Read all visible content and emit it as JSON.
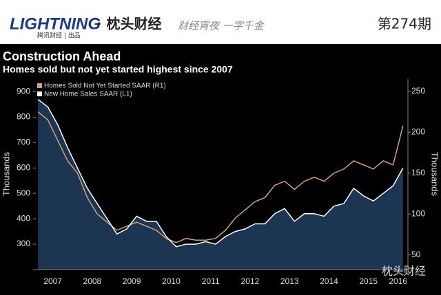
{
  "header": {
    "logo": "LIGHTNING",
    "brand": "· 枕头财经",
    "slogan": "财经宵夜 一字千金",
    "issue": "第274期",
    "producer": "腾讯财经 | 出品"
  },
  "watermark": "枕头财经",
  "chart_data": {
    "type": "line",
    "title": "Construction Ahead",
    "subtitle": "Homes sold but not yet started highest since 2007",
    "ylabel": "Thousands",
    "y2label": "Thousands",
    "categories": [
      null,
      null,
      "2007",
      null,
      null,
      null,
      "2008",
      null,
      null,
      null,
      "2009",
      null,
      null,
      null,
      "2010",
      null,
      null,
      null,
      "2011",
      null,
      null,
      null,
      "2012",
      null,
      null,
      null,
      "2013",
      null,
      null,
      null,
      "2014",
      null,
      null,
      null,
      "2015",
      null,
      null,
      "2016"
    ],
    "series": [
      {
        "name": "Homes Sold Not Yet Started SAAR (R1)",
        "color": "#d9a070",
        "axis": "y2",
        "values": [
          225,
          215,
          190,
          165,
          150,
          120,
          100,
          90,
          80,
          85,
          90,
          85,
          80,
          70,
          65,
          70,
          68,
          68,
          70,
          80,
          95,
          105,
          115,
          120,
          135,
          140,
          130,
          140,
          145,
          140,
          150,
          155,
          165,
          160,
          155,
          165,
          160,
          208
        ]
      },
      {
        "name": "New Home Sales SAAR (L1)",
        "color": "#ffffff",
        "fill": "#1c3552",
        "values": [
          870,
          840,
          770,
          680,
          600,
          520,
          460,
          400,
          340,
          360,
          410,
          390,
          390,
          330,
          290,
          300,
          300,
          310,
          300,
          330,
          350,
          360,
          380,
          380,
          420,
          440,
          390,
          420,
          420,
          410,
          450,
          460,
          520,
          490,
          470,
          500,
          530,
          600
        ]
      }
    ],
    "ylim": [
      200,
      950
    ],
    "yticks": [
      300,
      400,
      500,
      600,
      700,
      800,
      900
    ],
    "y2lim": [
      32,
      265
    ],
    "y2ticks": [
      50,
      100,
      150,
      200,
      250
    ]
  }
}
